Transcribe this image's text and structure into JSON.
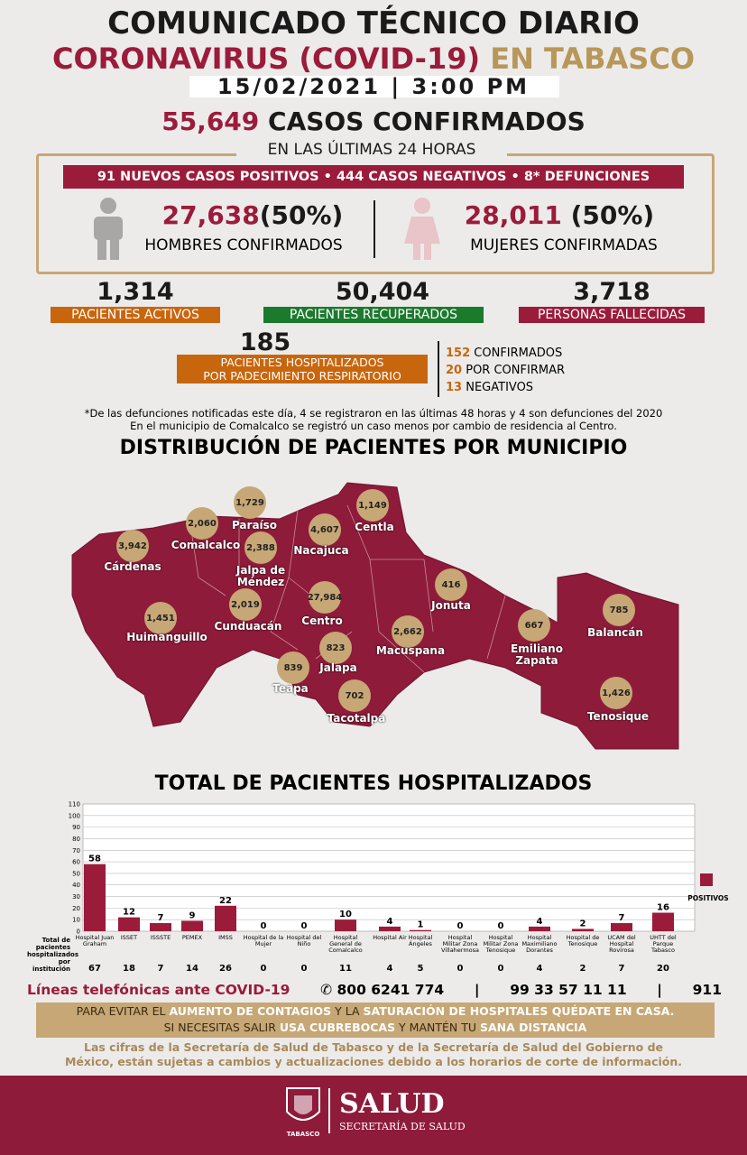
{
  "header": {
    "title": "COMUNICADO TÉCNICO DIARIO",
    "subtitle": "CORONAVIRUS (COVID-19)",
    "region": "EN TABASCO",
    "date": "15/02/2021",
    "time": "3:00 PM"
  },
  "summary": {
    "confirmed": "55,649",
    "confirmed_label": "CASOS CONFIRMADOS",
    "period": "EN LAS ÚLTIMAS 24 HORAS",
    "daily": [
      "91 NUEVOS CASOS POSITIVOS",
      "444 CASOS NEGATIVOS",
      "8* DEFUNCIONES"
    ],
    "men": {
      "value": "27,638",
      "pct": "(50%)",
      "label": "HOMBRES CONFIRMADOS"
    },
    "women": {
      "value": "28,011",
      "pct": "(50%)",
      "label": "MUJERES CONFIRMADAS"
    }
  },
  "stats": [
    {
      "value": "1,314",
      "label": "PACIENTES ACTIVOS"
    },
    {
      "value": "50,404",
      "label": "PACIENTES RECUPERADOS"
    },
    {
      "value": "3,718",
      "label": "PERSONAS FALLECIDAS"
    }
  ],
  "hospitalized": {
    "value": "185",
    "label": [
      "PACIENTES HOSPITALIZADOS",
      "POR PADECIMIENTO RESPIRATORIO"
    ],
    "breakdown": [
      {
        "value": "152",
        "label": "CONFIRMADOS"
      },
      {
        "value": "20",
        "label": "POR CONFIRMAR"
      },
      {
        "value": "13",
        "label": "NEGATIVOS"
      }
    ]
  },
  "notes": [
    "*De las defunciones notificadas este día, 4 se registraron en las últimas 48 horas y 4 son defunciones del 2020",
    "En el municipio de Comalcalco se registró un caso menos por cambio de residencia al Centro."
  ],
  "map": {
    "title": "DISTRIBUCIÓN DE PACIENTES POR MUNICIPIO",
    "municipalities": [
      {
        "name": "Cárdenas",
        "value": "3,942"
      },
      {
        "name": "Comalcalco",
        "value": "2,060"
      },
      {
        "name": "Paraíso",
        "value": "1,729"
      },
      {
        "name": "Jalpa de Méndez",
        "value": "2,388"
      },
      {
        "name": "Nacajuca",
        "value": "4,607"
      },
      {
        "name": "Centla",
        "value": "1,149"
      },
      {
        "name": "Cunduacán",
        "value": "2,019"
      },
      {
        "name": "Centro",
        "value": "27,984"
      },
      {
        "name": "Huimanguillo",
        "value": "1,451"
      },
      {
        "name": "Jonuta",
        "value": "416"
      },
      {
        "name": "Emiliano Zapata",
        "value": "667"
      },
      {
        "name": "Balancán",
        "value": "785"
      },
      {
        "name": "Macuspana",
        "value": "2,662"
      },
      {
        "name": "Jalapa",
        "value": "823"
      },
      {
        "name": "Teapa",
        "value": "839"
      },
      {
        "name": "Tacotalpa",
        "value": "702"
      },
      {
        "name": "Tenosique",
        "value": "1,426"
      }
    ]
  },
  "chart_data": {
    "type": "bar",
    "title": "TOTAL DE PACIENTES HOSPITALIZADOS",
    "categories": [
      "Hospital Juan Graham",
      "ISSET",
      "ISSSTE",
      "PEMEX",
      "IMSS",
      "Hospital de la Mujer",
      "Hospital del Niño",
      "Hospital General de Comalcalco",
      "Hospital Air",
      "Hospital Ángeles",
      "Hospital Militar Zona Villahermosa",
      "Hospital Militar Zona Tenosique",
      "Hospital Maximiliano Dorantes",
      "Hospital de Tenosique",
      "UCAM del Hospital Rovirosa",
      "UHTT del Parque Tabasco"
    ],
    "series": [
      {
        "name": "POSITIVOS",
        "color": "#9b1b3a",
        "values": [
          58,
          12,
          7,
          9,
          22,
          0,
          0,
          10,
          4,
          1,
          0,
          0,
          4,
          2,
          7,
          16
        ]
      }
    ],
    "totals_label": "Total de pacientes hospitalizados por institución",
    "totals": [
      67,
      18,
      7,
      14,
      26,
      0,
      0,
      11,
      4,
      5,
      0,
      0,
      4,
      2,
      7,
      20
    ],
    "ylim": [
      0,
      110
    ],
    "yticks": [
      0,
      10,
      20,
      30,
      40,
      50,
      60,
      70,
      80,
      90,
      100,
      110
    ],
    "grid": true
  },
  "footer": {
    "phones_label": "Líneas telefónicas ante COVID-19",
    "phones": [
      "800 6241 774",
      "99 33 57 11 11",
      "911"
    ],
    "message": [
      [
        "PARA EVITAR EL ",
        "AUMENTO DE CONTAGIOS",
        " Y LA ",
        "SATURACIÓN DE HOSPITALES QUÉDATE EN CASA."
      ],
      [
        "SI NECESITAS SALIR ",
        "USA CUBREBOCAS",
        " Y MANTÉN TU ",
        "SANA DISTANCIA"
      ]
    ],
    "disclaimer": [
      "Las cifras de la Secretaría de Salud de Tabasco y de la Secretaría de Salud del Gobierno de",
      "México, están sujetas a cambios y actualizaciones debido a los horarios de corte de información."
    ],
    "logo_state": "TABASCO",
    "logo_title": "SALUD",
    "logo_subtitle": "SECRETARÍA DE SALUD"
  }
}
